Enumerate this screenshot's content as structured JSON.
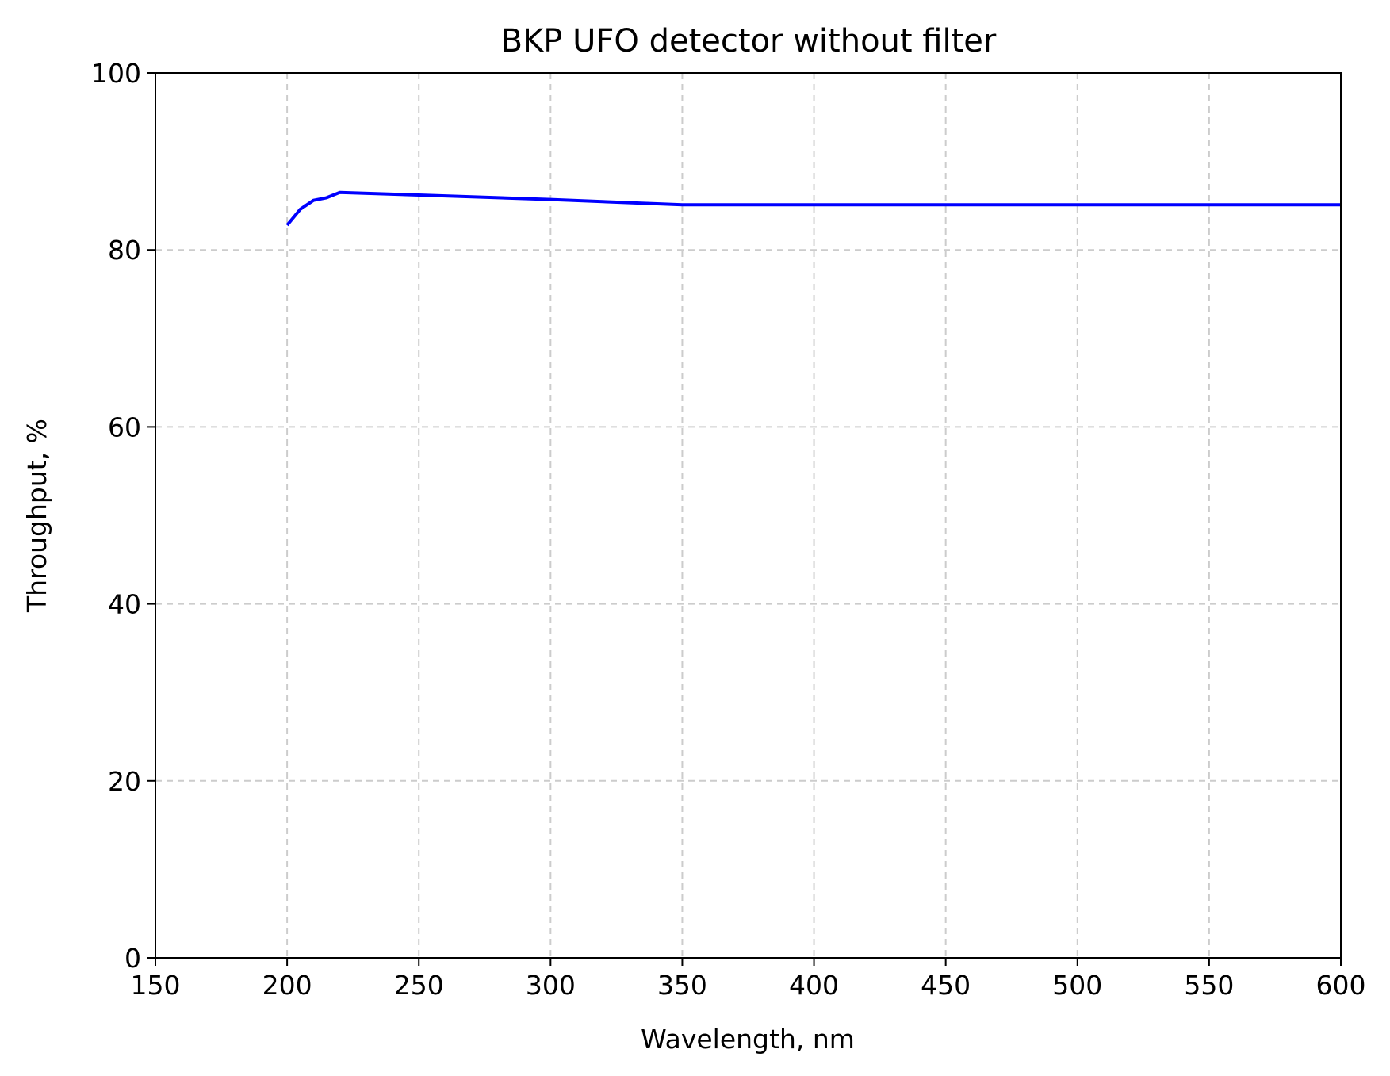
{
  "chart_data": {
    "type": "line",
    "title": "BKP UFO detector without filter",
    "xlabel": "Wavelength, nm",
    "ylabel": "Throughput, %",
    "xlim": [
      150,
      600
    ],
    "ylim": [
      0,
      100
    ],
    "xticks": [
      150,
      200,
      250,
      300,
      350,
      400,
      450,
      500,
      550,
      600
    ],
    "yticks": [
      0,
      20,
      40,
      60,
      80,
      100
    ],
    "grid": true,
    "legend": "none",
    "series": [
      {
        "color": "#0000ff",
        "x": [
          200,
          205,
          210,
          215,
          220,
          250,
          300,
          350,
          400,
          450,
          500,
          550,
          600
        ],
        "y": [
          82.8,
          84.6,
          85.6,
          85.9,
          86.5,
          86.2,
          85.7,
          85.1,
          85.1,
          85.1,
          85.1,
          85.1,
          85.1
        ]
      }
    ]
  }
}
